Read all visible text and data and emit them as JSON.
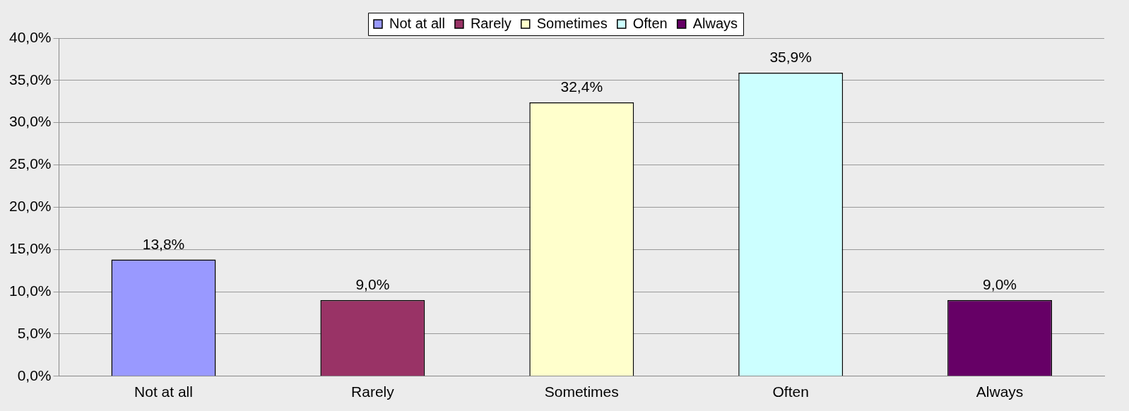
{
  "chart_data": {
    "type": "bar",
    "categories": [
      "Not at all",
      "Rarely",
      "Sometimes",
      "Often",
      "Always"
    ],
    "series": [
      {
        "name": "Not at all",
        "color": "#9999ff",
        "values": [
          13.8,
          null,
          null,
          null,
          null
        ],
        "value_labels": [
          "13,8%",
          null,
          null,
          null,
          null
        ]
      },
      {
        "name": "Rarely",
        "color": "#993366",
        "values": [
          null,
          9.0,
          null,
          null,
          null
        ],
        "value_labels": [
          null,
          "9,0%",
          null,
          null,
          null
        ]
      },
      {
        "name": "Sometimes",
        "color": "#ffffcc",
        "values": [
          null,
          null,
          32.4,
          null,
          null
        ],
        "value_labels": [
          null,
          null,
          "32,4%",
          null,
          null
        ]
      },
      {
        "name": "Often",
        "color": "#ccffff",
        "values": [
          null,
          null,
          null,
          35.9,
          null
        ],
        "value_labels": [
          null,
          null,
          null,
          "35,9%",
          null
        ]
      },
      {
        "name": "Always",
        "color": "#660066",
        "values": [
          null,
          null,
          null,
          null,
          9.0
        ],
        "value_labels": [
          null,
          null,
          null,
          null,
          "9,0%"
        ]
      }
    ],
    "ylim": [
      0,
      40
    ],
    "yticks": [
      {
        "value": 0,
        "label": "0,0%"
      },
      {
        "value": 5,
        "label": "5,0%"
      },
      {
        "value": 10,
        "label": "10,0%"
      },
      {
        "value": 15,
        "label": "15,0%"
      },
      {
        "value": 20,
        "label": "20,0%"
      },
      {
        "value": 25,
        "label": "25,0%"
      },
      {
        "value": 30,
        "label": "30,0%"
      },
      {
        "value": 35,
        "label": "35,0%"
      },
      {
        "value": 40,
        "label": "40,0%"
      }
    ],
    "grid": "y",
    "legend": "top"
  }
}
